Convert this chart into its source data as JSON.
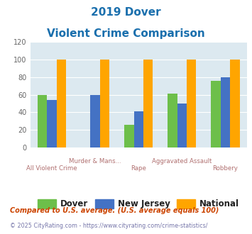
{
  "title_line1": "2019 Dover",
  "title_line2": "Violent Crime Comparison",
  "categories": [
    "All Violent Crime",
    "Murder & Mans...",
    "Rape",
    "Aggravated Assault",
    "Robbery"
  ],
  "dover": [
    60,
    0,
    26,
    61,
    76
  ],
  "new_jersey": [
    54,
    60,
    41,
    50,
    80
  ],
  "national": [
    100,
    100,
    100,
    100,
    100
  ],
  "dover_color": "#6dbf4a",
  "nj_color": "#4472c4",
  "national_color": "#ffa500",
  "ylim": [
    0,
    120
  ],
  "yticks": [
    0,
    20,
    40,
    60,
    80,
    100,
    120
  ],
  "bg_color": "#dce9f0",
  "fig_bg": "#ffffff",
  "title_color": "#1a6fad",
  "xlabel_color_top": "#b07070",
  "xlabel_color_bot": "#b07070",
  "legend_labels": [
    "Dover",
    "New Jersey",
    "National"
  ],
  "footnote1": "Compared to U.S. average. (U.S. average equals 100)",
  "footnote2": "© 2025 CityRating.com - https://www.cityrating.com/crime-statistics/",
  "footnote1_color": "#cc4400",
  "footnote2_color": "#7777aa",
  "bar_width": 0.22
}
